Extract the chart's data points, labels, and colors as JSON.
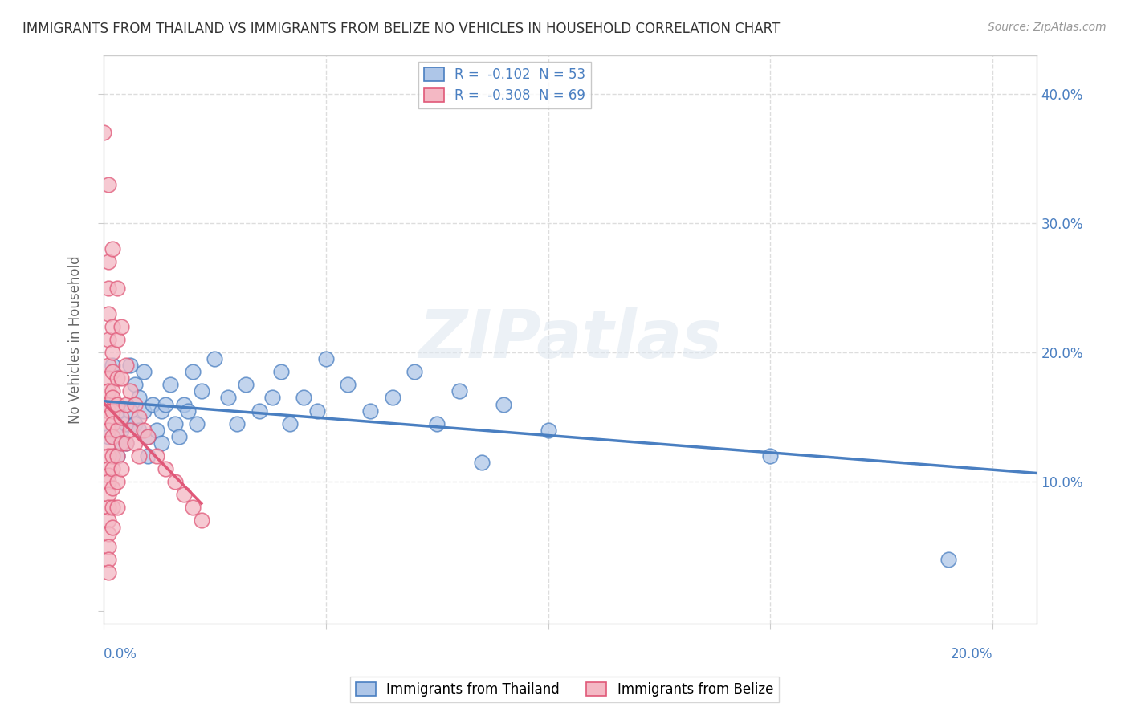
{
  "title": "IMMIGRANTS FROM THAILAND VS IMMIGRANTS FROM BELIZE NO VEHICLES IN HOUSEHOLD CORRELATION CHART",
  "source": "Source: ZipAtlas.com",
  "ylabel": "No Vehicles in Household",
  "xlim": [
    0.0,
    0.21
  ],
  "ylim": [
    -0.01,
    0.43
  ],
  "legend_entries": [
    {
      "label": "R =  -0.102  N = 53"
    },
    {
      "label": "R =  -0.308  N = 69"
    }
  ],
  "thailand_scatter_color": "#aec6e8",
  "belize_scatter_color": "#f4b8c4",
  "regression_thailand_color": "#4a7fc1",
  "regression_belize_color": "#e05878",
  "watermark": "ZIPatlas",
  "background_color": "#ffffff",
  "grid_color": "#dddddd",
  "thailand_points": [
    [
      0.001,
      0.135
    ],
    [
      0.002,
      0.19
    ],
    [
      0.003,
      0.155
    ],
    [
      0.003,
      0.12
    ],
    [
      0.004,
      0.14
    ],
    [
      0.004,
      0.13
    ],
    [
      0.005,
      0.145
    ],
    [
      0.005,
      0.13
    ],
    [
      0.006,
      0.19
    ],
    [
      0.006,
      0.155
    ],
    [
      0.007,
      0.175
    ],
    [
      0.007,
      0.145
    ],
    [
      0.008,
      0.165
    ],
    [
      0.008,
      0.14
    ],
    [
      0.009,
      0.185
    ],
    [
      0.009,
      0.155
    ],
    [
      0.01,
      0.135
    ],
    [
      0.01,
      0.12
    ],
    [
      0.011,
      0.16
    ],
    [
      0.012,
      0.14
    ],
    [
      0.013,
      0.155
    ],
    [
      0.013,
      0.13
    ],
    [
      0.014,
      0.16
    ],
    [
      0.015,
      0.175
    ],
    [
      0.016,
      0.145
    ],
    [
      0.017,
      0.135
    ],
    [
      0.018,
      0.16
    ],
    [
      0.019,
      0.155
    ],
    [
      0.02,
      0.185
    ],
    [
      0.021,
      0.145
    ],
    [
      0.022,
      0.17
    ],
    [
      0.025,
      0.195
    ],
    [
      0.028,
      0.165
    ],
    [
      0.03,
      0.145
    ],
    [
      0.032,
      0.175
    ],
    [
      0.035,
      0.155
    ],
    [
      0.038,
      0.165
    ],
    [
      0.04,
      0.185
    ],
    [
      0.042,
      0.145
    ],
    [
      0.045,
      0.165
    ],
    [
      0.048,
      0.155
    ],
    [
      0.05,
      0.195
    ],
    [
      0.055,
      0.175
    ],
    [
      0.06,
      0.155
    ],
    [
      0.065,
      0.165
    ],
    [
      0.07,
      0.185
    ],
    [
      0.075,
      0.145
    ],
    [
      0.08,
      0.17
    ],
    [
      0.085,
      0.115
    ],
    [
      0.09,
      0.16
    ],
    [
      0.1,
      0.14
    ],
    [
      0.15,
      0.12
    ],
    [
      0.19,
      0.04
    ]
  ],
  "belize_points": [
    [
      0.0,
      0.37
    ],
    [
      0.001,
      0.33
    ],
    [
      0.001,
      0.27
    ],
    [
      0.001,
      0.25
    ],
    [
      0.001,
      0.23
    ],
    [
      0.001,
      0.21
    ],
    [
      0.001,
      0.19
    ],
    [
      0.001,
      0.18
    ],
    [
      0.001,
      0.17
    ],
    [
      0.001,
      0.16
    ],
    [
      0.001,
      0.155
    ],
    [
      0.001,
      0.15
    ],
    [
      0.001,
      0.14
    ],
    [
      0.001,
      0.13
    ],
    [
      0.001,
      0.12
    ],
    [
      0.001,
      0.11
    ],
    [
      0.001,
      0.105
    ],
    [
      0.001,
      0.1
    ],
    [
      0.001,
      0.09
    ],
    [
      0.001,
      0.08
    ],
    [
      0.001,
      0.07
    ],
    [
      0.001,
      0.06
    ],
    [
      0.001,
      0.05
    ],
    [
      0.001,
      0.04
    ],
    [
      0.001,
      0.03
    ],
    [
      0.002,
      0.28
    ],
    [
      0.002,
      0.22
    ],
    [
      0.002,
      0.2
    ],
    [
      0.002,
      0.185
    ],
    [
      0.002,
      0.17
    ],
    [
      0.002,
      0.165
    ],
    [
      0.002,
      0.155
    ],
    [
      0.002,
      0.145
    ],
    [
      0.002,
      0.135
    ],
    [
      0.002,
      0.12
    ],
    [
      0.002,
      0.11
    ],
    [
      0.002,
      0.095
    ],
    [
      0.002,
      0.08
    ],
    [
      0.002,
      0.065
    ],
    [
      0.003,
      0.25
    ],
    [
      0.003,
      0.21
    ],
    [
      0.003,
      0.18
    ],
    [
      0.003,
      0.16
    ],
    [
      0.003,
      0.14
    ],
    [
      0.003,
      0.12
    ],
    [
      0.003,
      0.1
    ],
    [
      0.003,
      0.08
    ],
    [
      0.004,
      0.22
    ],
    [
      0.004,
      0.18
    ],
    [
      0.004,
      0.15
    ],
    [
      0.004,
      0.13
    ],
    [
      0.004,
      0.11
    ],
    [
      0.005,
      0.19
    ],
    [
      0.005,
      0.16
    ],
    [
      0.005,
      0.13
    ],
    [
      0.006,
      0.17
    ],
    [
      0.006,
      0.14
    ],
    [
      0.007,
      0.16
    ],
    [
      0.007,
      0.13
    ],
    [
      0.008,
      0.15
    ],
    [
      0.008,
      0.12
    ],
    [
      0.009,
      0.14
    ],
    [
      0.01,
      0.135
    ],
    [
      0.012,
      0.12
    ],
    [
      0.014,
      0.11
    ],
    [
      0.016,
      0.1
    ],
    [
      0.018,
      0.09
    ],
    [
      0.02,
      0.08
    ],
    [
      0.022,
      0.07
    ]
  ]
}
